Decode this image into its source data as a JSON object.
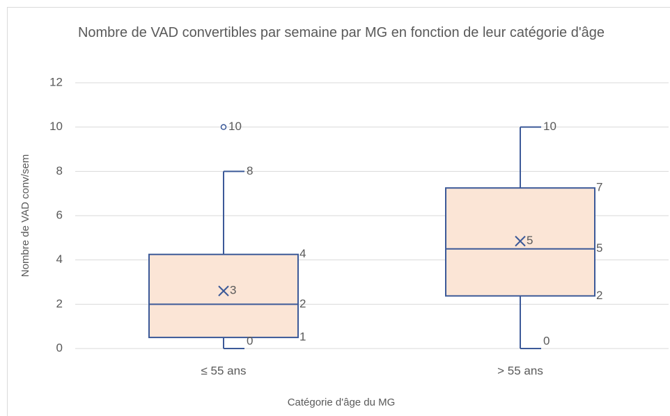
{
  "chart_data": {
    "type": "box",
    "title": "Nombre de VAD convertibles par semaine par MG en fonction de leur catégorie d'âge",
    "x_label": "Catégorie d'âge du MG",
    "y_label": "Nombre de VAD conv/sem",
    "categories": [
      "≤ 55 ans",
      "> 55 ans"
    ],
    "stats": [
      {
        "min": 0,
        "q1": 0.5,
        "median": 2,
        "q3": 4.25,
        "max": 8,
        "mean": 2.6,
        "outliers": [
          10
        ]
      },
      {
        "min": 0,
        "q1": 2.375,
        "median": 4.5,
        "q3": 7.25,
        "max": 10,
        "mean": 4.85,
        "outliers": []
      }
    ],
    "value_labels": [
      {
        "min": "0",
        "q1": "1",
        "median": "2",
        "q3": "4",
        "max": "8",
        "mean": "3",
        "outliers": [
          "10"
        ]
      },
      {
        "min": "0",
        "q1": "2",
        "median": "5",
        "q3": "7",
        "max": "10",
        "mean": "5",
        "outliers": []
      }
    ],
    "color": "#3b5998",
    "fill": "#fbe5d6",
    "ylim": [
      0,
      12
    ],
    "yticks": [
      0,
      2,
      4,
      6,
      8,
      10,
      12
    ],
    "grid": true
  }
}
